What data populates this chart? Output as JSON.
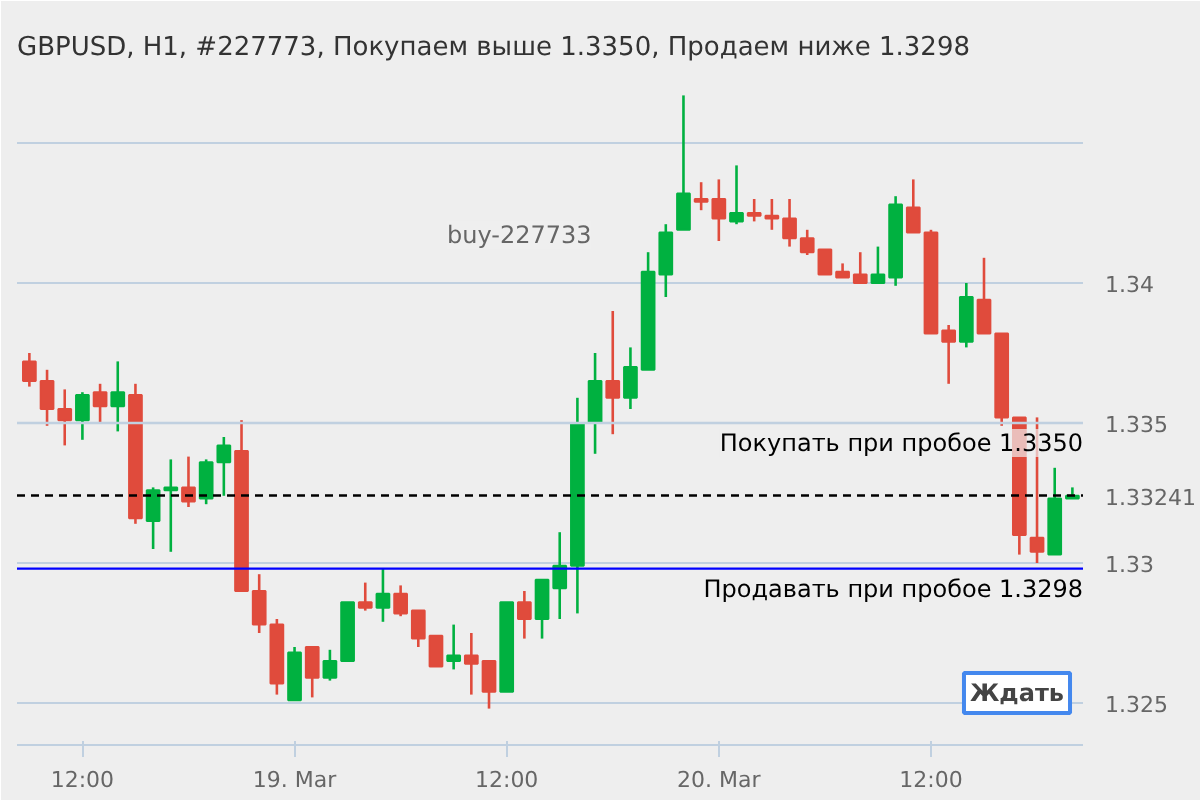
{
  "chart_data": {
    "type": "candlestick",
    "title": "GBPUSD, H1, #227773, Покупаем выше 1.3350, Продаем ниже 1.3298",
    "categories": [
      null,
      null,
      null,
      "12:00",
      null,
      null,
      null,
      null,
      null,
      null,
      null,
      null,
      null,
      null,
      null,
      "19. Mar",
      null,
      null,
      null,
      null,
      null,
      null,
      null,
      null,
      null,
      null,
      null,
      "12:00",
      null,
      null,
      null,
      null,
      null,
      null,
      null,
      null,
      null,
      null,
      null,
      "20. Mar",
      null,
      null,
      null,
      null,
      null,
      null,
      null,
      null,
      null,
      null,
      null,
      "12:00",
      null,
      null,
      null,
      null,
      null,
      null,
      null,
      null
    ],
    "ohlc": [
      [
        1.3372,
        1.3375,
        1.3363,
        1.3365
      ],
      [
        1.3365,
        1.3369,
        1.3349,
        1.3355
      ],
      [
        1.3355,
        1.3362,
        1.3342,
        1.3351
      ],
      [
        1.3351,
        1.3361,
        1.3344,
        1.336
      ],
      [
        1.3361,
        1.3364,
        1.335,
        1.3356
      ],
      [
        1.3356,
        1.3372,
        1.3347,
        1.3361
      ],
      [
        1.336,
        1.3364,
        1.3314,
        1.3316
      ],
      [
        1.3315,
        1.3327,
        1.3305,
        1.3326
      ],
      [
        1.3326,
        1.3337,
        1.3304,
        1.3327
      ],
      [
        1.3327,
        1.3338,
        1.332,
        1.3322
      ],
      [
        1.3323,
        1.3337,
        1.3321,
        1.3336
      ],
      [
        1.3336,
        1.3345,
        1.3324,
        1.3342
      ],
      [
        1.334,
        1.3351,
        1.329,
        1.329
      ],
      [
        1.329,
        1.3296,
        1.3275,
        1.3278
      ],
      [
        1.3278,
        1.328,
        1.3253,
        1.3257
      ],
      [
        1.3251,
        1.327,
        1.3251,
        1.3268
      ],
      [
        1.327,
        1.327,
        1.3252,
        1.3259
      ],
      [
        1.3259,
        1.3269,
        1.3258,
        1.3265
      ],
      [
        1.3265,
        1.3286,
        1.3265,
        1.3286
      ],
      [
        1.3286,
        1.3293,
        1.3283,
        1.3284
      ],
      [
        1.3284,
        1.3298,
        1.3279,
        1.3289
      ],
      [
        1.3289,
        1.3292,
        1.3281,
        1.3282
      ],
      [
        1.3283,
        1.3283,
        1.327,
        1.3273
      ],
      [
        1.3274,
        1.3274,
        1.3263,
        1.3263
      ],
      [
        1.3265,
        1.3278,
        1.3262,
        1.3267
      ],
      [
        1.3267,
        1.3275,
        1.3253,
        1.3264
      ],
      [
        1.3265,
        1.3265,
        1.3248,
        1.3254
      ],
      [
        1.3254,
        1.3286,
        1.3254,
        1.3286
      ],
      [
        1.3286,
        1.329,
        1.3273,
        1.328
      ],
      [
        1.328,
        1.3294,
        1.3273,
        1.3294
      ],
      [
        1.3291,
        1.3311,
        1.328,
        1.3299
      ],
      [
        1.3299,
        1.3359,
        1.3282,
        1.335
      ],
      [
        1.335,
        1.3375,
        1.3339,
        1.3365
      ],
      [
        1.3365,
        1.339,
        1.3346,
        1.3359
      ],
      [
        1.3359,
        1.3377,
        1.3355,
        1.337
      ],
      [
        1.3369,
        1.3411,
        1.3369,
        1.3404
      ],
      [
        1.3403,
        1.3421,
        1.3395,
        1.3418
      ],
      [
        1.3419,
        1.3467,
        1.3419,
        1.3432
      ],
      [
        1.343,
        1.3436,
        1.3426,
        1.3429
      ],
      [
        1.343,
        1.3437,
        1.3415,
        1.3423
      ],
      [
        1.3422,
        1.3442,
        1.3421,
        1.3425
      ],
      [
        1.3425,
        1.343,
        1.3422,
        1.3424
      ],
      [
        1.3424,
        1.343,
        1.3419,
        1.3423
      ],
      [
        1.3423,
        1.343,
        1.3413,
        1.3416
      ],
      [
        1.3416,
        1.3419,
        1.341,
        1.3411
      ],
      [
        1.3412,
        1.3412,
        1.3403,
        1.3403
      ],
      [
        1.3404,
        1.3407,
        1.3402,
        1.3402
      ],
      [
        1.3403,
        1.3411,
        1.34,
        1.34
      ],
      [
        1.34,
        1.3413,
        1.34,
        1.3403
      ],
      [
        1.3402,
        1.3431,
        1.3399,
        1.3428
      ],
      [
        1.3427,
        1.3437,
        1.3418,
        1.3418
      ],
      [
        1.3418,
        1.3419,
        1.3382,
        1.3382
      ],
      [
        1.3383,
        1.3385,
        1.3364,
        1.3379
      ],
      [
        1.3379,
        1.34,
        1.3377,
        1.3395
      ],
      [
        1.3394,
        1.3409,
        1.3382,
        1.3382
      ],
      [
        1.3382,
        1.3382,
        1.3349,
        1.3352
      ],
      [
        1.3352,
        1.3352,
        1.3303,
        1.331
      ],
      [
        1.3309,
        1.3352,
        1.33,
        1.3304
      ],
      [
        1.3303,
        1.3334,
        1.3303,
        1.3323
      ],
      [
        1.3323,
        1.3327,
        1.3323,
        1.3324
      ]
    ],
    "colors": [
      "#e04b3c",
      "#e04b3c",
      "#e04b3c",
      "#00b140",
      "#e04b3c",
      "#00b140",
      "#e04b3c",
      "#00b140",
      "#00b140",
      "#e04b3c",
      "#00b140",
      "#00b140",
      "#e04b3c",
      "#e04b3c",
      "#e04b3c",
      "#00b140",
      "#e04b3c",
      "#00b140",
      "#00b140",
      "#e04b3c",
      "#00b140",
      "#e04b3c",
      "#e04b3c",
      "#e04b3c",
      "#00b140",
      "#e04b3c",
      "#e04b3c",
      "#00b140",
      "#e04b3c",
      "#00b140",
      "#00b140",
      "#00b140",
      "#00b140",
      "#e04b3c",
      "#00b140",
      "#00b140",
      "#00b140",
      "#00b140",
      "#e04b3c",
      "#e04b3c",
      "#00b140",
      "#e04b3c",
      "#e04b3c",
      "#e04b3c",
      "#e04b3c",
      "#e04b3c",
      "#e04b3c",
      "#e04b3c",
      "#00b140",
      "#00b140",
      "#e04b3c",
      "#e04b3c",
      "#e04b3c",
      "#00b140",
      "#e04b3c",
      "#e04b3c",
      "#e04b3c",
      "#e04b3c",
      "#00b140",
      "#00b140"
    ],
    "ylim": [
      1.3235,
      1.3475
    ],
    "yticks": [
      1.325,
      1.33,
      1.335,
      1.34,
      {
        "value": 1.345,
        "label": null
      }
    ],
    "grid": "y",
    "ref_lines": [
      {
        "axis": "y",
        "value": 1.335,
        "label": "Покупать при пробое 1.3350",
        "color": "#c0d0e0",
        "line_style": "solid"
      },
      {
        "axis": "y",
        "value": 1.33241,
        "label": "1.33241",
        "color": "#000000",
        "line_style": "dashed"
      },
      {
        "axis": "y",
        "value": 1.3298,
        "label": "Продавать при пробое 1.3298",
        "color": "#0000ff",
        "line_style": "solid"
      }
    ],
    "annotations": [
      "buy-227733",
      "Ждать"
    ]
  }
}
